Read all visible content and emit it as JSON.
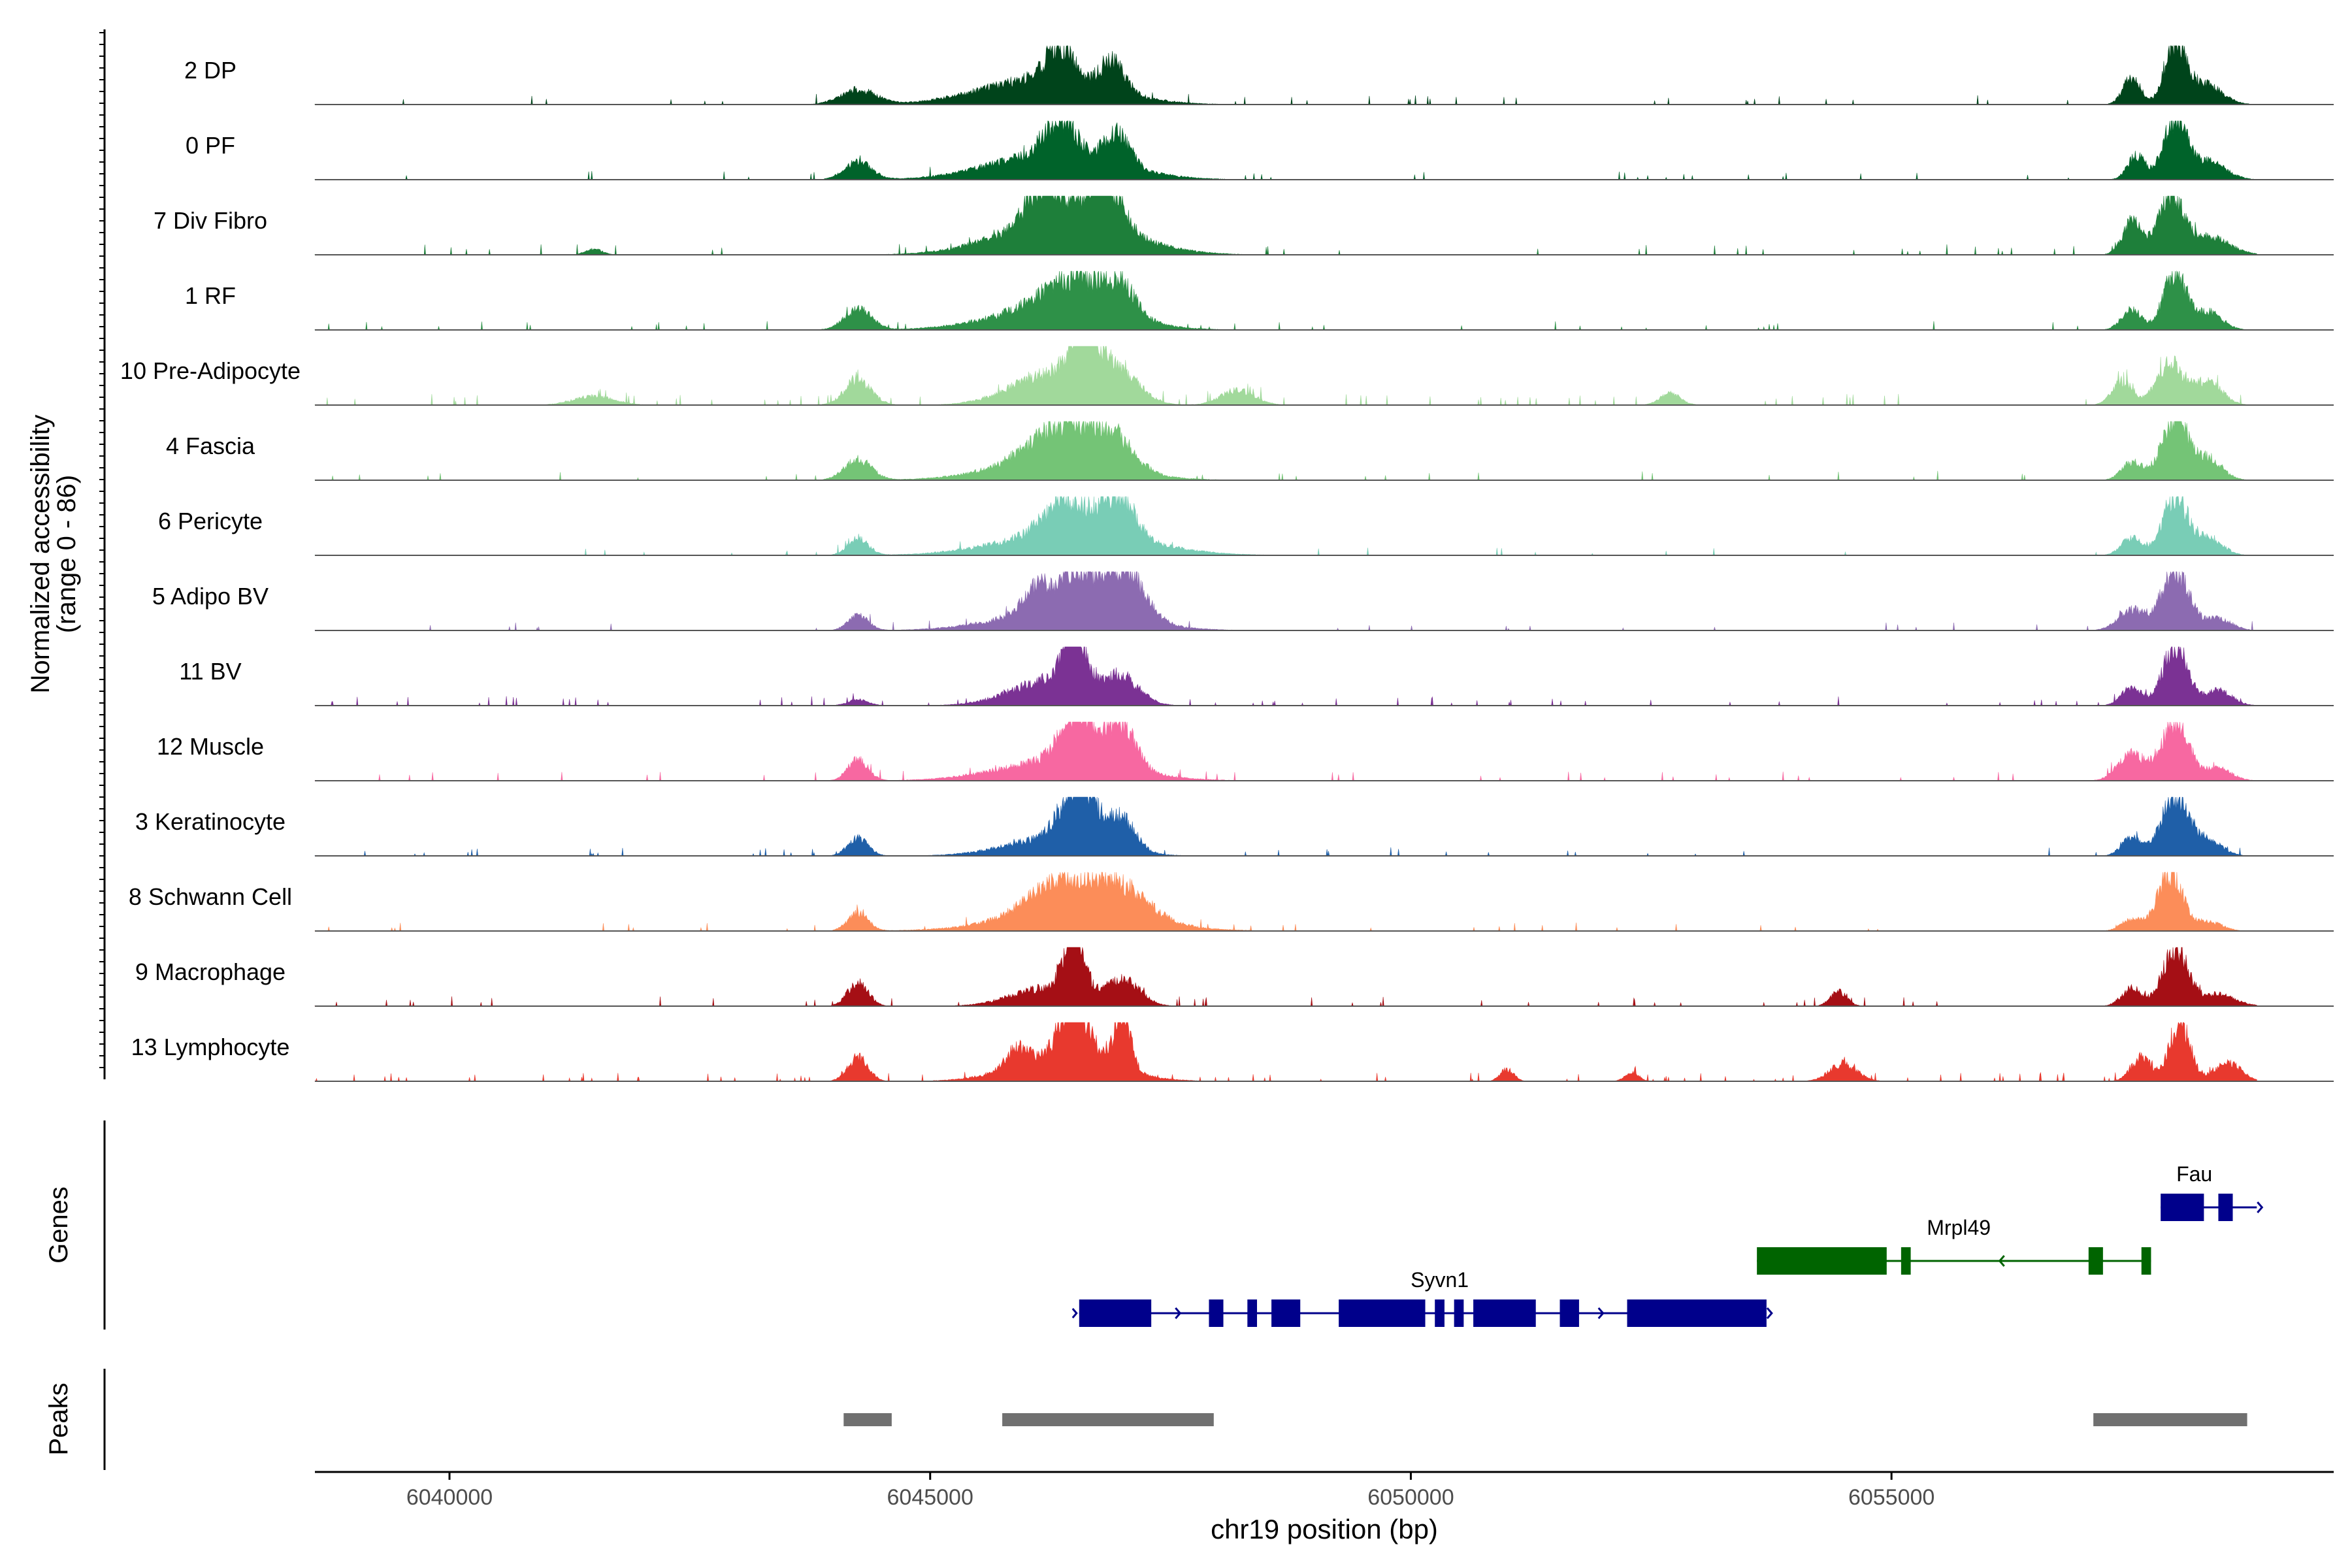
{
  "colors": {
    "axis": "#000000",
    "baseline": "#555555",
    "tick_label": "#4d4d4d",
    "peak": "#707070",
    "gene_plus": "#00008B",
    "gene_minus": "#006400"
  },
  "chart_data": {
    "type": "area",
    "title": "",
    "ylabel": "Normalized accessibility\n(range 0 - 86)",
    "ylabel_line1": "Normalized accessibility",
    "ylabel_line2": "(range 0 - 86)",
    "yrange": [
      0,
      86
    ],
    "xlabel": "chr19 position (bp)",
    "xlim": [
      6038600,
      6059600
    ],
    "xticks": [
      6040000,
      6045000,
      6050000,
      6055000
    ],
    "xtick_labels": [
      "6040000",
      "6045000",
      "6050000",
      "6055000"
    ],
    "genes_panel_label": "Genes",
    "peaks_panel_label": "Peaks",
    "tracks": [
      {
        "name": "2 DP",
        "color": "#00441B",
        "profile": {
          "base": 0.05,
          "noise": 0.1,
          "peaks": [
            [
              6044250,
              260,
              0.25
            ],
            [
              6046350,
              200,
              0.55
            ],
            [
              6046900,
              180,
              0.5
            ],
            [
              6046200,
              900,
              0.45
            ],
            [
              6057950,
              150,
              1.0
            ],
            [
              6057500,
              130,
              0.45
            ],
            [
              6058250,
              250,
              0.35
            ]
          ]
        }
      },
      {
        "name": "0 PF",
        "color": "#00632A",
        "profile": {
          "base": 0.03,
          "noise": 0.1,
          "peaks": [
            [
              6044250,
              200,
              0.3
            ],
            [
              6046350,
              220,
              0.6
            ],
            [
              6046950,
              180,
              0.55
            ],
            [
              6046300,
              900,
              0.45
            ],
            [
              6057950,
              170,
              1.0
            ],
            [
              6057550,
              130,
              0.4
            ],
            [
              6058300,
              250,
              0.3
            ]
          ]
        }
      },
      {
        "name": "7 Div Fibro",
        "color": "#1E7F3A",
        "profile": {
          "base": 0.06,
          "noise": 0.12,
          "peaks": [
            [
              6046200,
              250,
              0.7
            ],
            [
              6046800,
              250,
              0.85
            ],
            [
              6046400,
              900,
              0.6
            ],
            [
              6057900,
              180,
              1.0
            ],
            [
              6057500,
              140,
              0.55
            ],
            [
              6058300,
              300,
              0.3
            ],
            [
              6041500,
              120,
              0.1
            ]
          ]
        }
      },
      {
        "name": "1 RF",
        "color": "#2E9148",
        "profile": {
          "base": 0.03,
          "noise": 0.1,
          "peaks": [
            [
              6044250,
              200,
              0.35
            ],
            [
              6046550,
              500,
              0.55
            ],
            [
              6047000,
              200,
              0.4
            ],
            [
              6046300,
              900,
              0.35
            ],
            [
              6057950,
              160,
              1.0
            ],
            [
              6057500,
              150,
              0.35
            ],
            [
              6058300,
              200,
              0.3
            ]
          ]
        }
      },
      {
        "name": "10 Pre-Adipocyte",
        "color": "#A1D99B",
        "profile": {
          "base": 0.07,
          "noise": 0.2,
          "peaks": [
            [
              6044250,
              200,
              0.4
            ],
            [
              6046600,
              180,
              1.0
            ],
            [
              6046300,
              600,
              0.55
            ],
            [
              6046950,
              300,
              0.5
            ],
            [
              6048200,
              250,
              0.25
            ],
            [
              6057900,
              200,
              0.7
            ],
            [
              6057400,
              150,
              0.4
            ],
            [
              6058300,
              200,
              0.4
            ],
            [
              6041500,
              300,
              0.15
            ],
            [
              6052700,
              150,
              0.2
            ]
          ]
        }
      },
      {
        "name": "4 Fascia",
        "color": "#74C476",
        "profile": {
          "base": 0.04,
          "noise": 0.08,
          "peaks": [
            [
              6044250,
              200,
              0.35
            ],
            [
              6046400,
              500,
              0.6
            ],
            [
              6046900,
              300,
              0.45
            ],
            [
              6046300,
              900,
              0.3
            ],
            [
              6057950,
              200,
              1.0
            ],
            [
              6057500,
              150,
              0.3
            ],
            [
              6058300,
              200,
              0.35
            ]
          ]
        }
      },
      {
        "name": "6 Pericyte",
        "color": "#79CDB6",
        "profile": {
          "base": 0.03,
          "noise": 0.08,
          "peaks": [
            [
              6044250,
              150,
              0.3
            ],
            [
              6046400,
              300,
              0.55
            ],
            [
              6046950,
              250,
              0.7
            ],
            [
              6046500,
              1000,
              0.4
            ],
            [
              6057950,
              180,
              1.0
            ],
            [
              6057500,
              150,
              0.3
            ],
            [
              6058300,
              200,
              0.3
            ]
          ]
        }
      },
      {
        "name": "5 Adipo BV",
        "color": "#8C6BB1",
        "profile": {
          "base": 0.03,
          "noise": 0.08,
          "peaks": [
            [
              6044250,
              150,
              0.25
            ],
            [
              6046100,
              200,
              0.4
            ],
            [
              6046500,
              250,
              0.6
            ],
            [
              6047000,
              300,
              0.85
            ],
            [
              6046400,
              900,
              0.35
            ],
            [
              6057950,
              200,
              1.0
            ],
            [
              6057500,
              200,
              0.35
            ],
            [
              6058400,
              200,
              0.2
            ]
          ]
        }
      },
      {
        "name": "11 BV",
        "color": "#7B3294",
        "profile": {
          "base": 0.04,
          "noise": 0.15,
          "peaks": [
            [
              6046500,
              150,
              1.0
            ],
            [
              6046300,
              600,
              0.45
            ],
            [
              6047000,
              250,
              0.4
            ],
            [
              6057950,
              180,
              1.0
            ],
            [
              6057500,
              150,
              0.3
            ],
            [
              6058400,
              200,
              0.25
            ],
            [
              6044250,
              150,
              0.1
            ]
          ]
        }
      },
      {
        "name": "12 Muscle",
        "color": "#F768A1",
        "profile": {
          "base": 0.04,
          "noise": 0.12,
          "peaks": [
            [
              6044250,
              150,
              0.35
            ],
            [
              6046550,
              250,
              0.9
            ],
            [
              6047000,
              200,
              0.75
            ],
            [
              6046400,
              900,
              0.35
            ],
            [
              6057950,
              200,
              1.0
            ],
            [
              6057500,
              200,
              0.45
            ],
            [
              6058400,
              200,
              0.2
            ]
          ]
        }
      },
      {
        "name": "3 Keratinocyte",
        "color": "#1F5FA8",
        "profile": {
          "base": 0.03,
          "noise": 0.08,
          "peaks": [
            [
              6044250,
              150,
              0.3
            ],
            [
              6046550,
              250,
              1.0
            ],
            [
              6047000,
              200,
              0.5
            ],
            [
              6046300,
              700,
              0.3
            ],
            [
              6057950,
              200,
              1.0
            ],
            [
              6057500,
              150,
              0.3
            ],
            [
              6058300,
              200,
              0.25
            ]
          ]
        }
      },
      {
        "name": "8 Schwann Cell",
        "color": "#FC8D59",
        "profile": {
          "base": 0.03,
          "noise": 0.08,
          "peaks": [
            [
              6044250,
              150,
              0.3
            ],
            [
              6046400,
              500,
              0.55
            ],
            [
              6047000,
              400,
              0.45
            ],
            [
              6046500,
              1000,
              0.3
            ],
            [
              6057900,
              180,
              1.0
            ],
            [
              6057500,
              150,
              0.2
            ],
            [
              6058300,
              200,
              0.15
            ]
          ]
        }
      },
      {
        "name": "9 Macrophage",
        "color": "#A50F15",
        "profile": {
          "base": 0.05,
          "noise": 0.15,
          "peaks": [
            [
              6044250,
              150,
              0.4
            ],
            [
              6046500,
              150,
              1.0
            ],
            [
              6046200,
              500,
              0.3
            ],
            [
              6047000,
              250,
              0.45
            ],
            [
              6054450,
              120,
              0.25
            ],
            [
              6057950,
              180,
              1.0
            ],
            [
              6057500,
              150,
              0.3
            ],
            [
              6058400,
              250,
              0.2
            ]
          ]
        }
      },
      {
        "name": "13 Lymphocyte",
        "color": "#E8392E",
        "profile": {
          "base": 0.03,
          "noise": 0.25,
          "peaks": [
            [
              6044250,
              150,
              0.4
            ],
            [
              6046500,
              200,
              0.9
            ],
            [
              6047000,
              120,
              0.95
            ],
            [
              6046400,
              700,
              0.45
            ],
            [
              6045900,
              150,
              0.3
            ],
            [
              6054500,
              200,
              0.3
            ],
            [
              6058000,
              150,
              1.0
            ],
            [
              6057600,
              150,
              0.4
            ],
            [
              6058500,
              200,
              0.3
            ],
            [
              6051000,
              100,
              0.2
            ],
            [
              6052300,
              100,
              0.15
            ]
          ]
        }
      }
    ],
    "genes": [
      {
        "name": "Syvn1",
        "strand": "+",
        "color": "#00008B",
        "row": 2,
        "start": 6046550,
        "end": 6053700,
        "exons": [
          [
            6046550,
            6047300
          ],
          [
            6047900,
            6048050
          ],
          [
            6048300,
            6048400
          ],
          [
            6048550,
            6048850
          ],
          [
            6049250,
            6050150
          ],
          [
            6050250,
            6050350
          ],
          [
            6050450,
            6050550
          ],
          [
            6050650,
            6051300
          ],
          [
            6051550,
            6051750
          ],
          [
            6052250,
            6053700
          ]
        ]
      },
      {
        "name": "Mrpl49",
        "strand": "-",
        "color": "#006400",
        "row": 1,
        "start": 6053600,
        "end": 6057700,
        "exons": [
          [
            6053600,
            6054950
          ],
          [
            6055100,
            6055200
          ],
          [
            6057050,
            6057200
          ],
          [
            6057600,
            6057700
          ]
        ]
      },
      {
        "name": "Fau",
        "strand": "+",
        "color": "#00008B",
        "row": 0,
        "start": 6057800,
        "end": 6058800,
        "exons": [
          [
            6057800,
            6058250
          ],
          [
            6058400,
            6058550
          ]
        ]
      }
    ],
    "peaks": [
      [
        6044100,
        6044600
      ],
      [
        6045750,
        6047950
      ],
      [
        6057100,
        6058700
      ]
    ]
  }
}
